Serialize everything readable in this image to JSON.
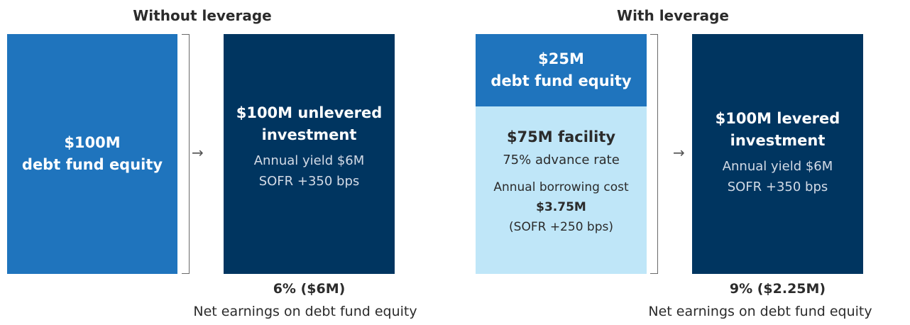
{
  "without": {
    "heading": "Without leverage",
    "equity_box": {
      "line1": "$100M",
      "line2": "debt fund equity"
    },
    "investment_box": {
      "title_line1": "$100M unlevered",
      "title_line2": "investment",
      "yield": "Annual yield $6M",
      "rate": "SOFR +350 bps"
    },
    "result": {
      "value": "6% ($6M)",
      "caption": "Net earnings on debt fund equity"
    }
  },
  "with": {
    "heading": "With leverage",
    "equity_box": {
      "line1": "$25M",
      "line2": "debt fund equity"
    },
    "facility_box": {
      "title": "$75M facility",
      "advance_rate": "75% advance rate",
      "borrow_label": "Annual borrowing cost",
      "borrow_value": "$3.75M",
      "borrow_rate": "(SOFR +250 bps)"
    },
    "investment_box": {
      "title_line1": "$100M levered",
      "title_line2": "investment",
      "yield": "Annual yield $6M",
      "rate": "SOFR +350 bps"
    },
    "result": {
      "value": "9% ($2.25M)",
      "caption": "Net earnings on debt fund equity"
    }
  },
  "colors": {
    "equity_blue": "#1f74bd",
    "investment_navy": "#003560",
    "facility_light_blue": "#bfe6f8"
  },
  "icons": {
    "arrow": "arrow-right-icon",
    "bracket": "bracket-icon"
  }
}
